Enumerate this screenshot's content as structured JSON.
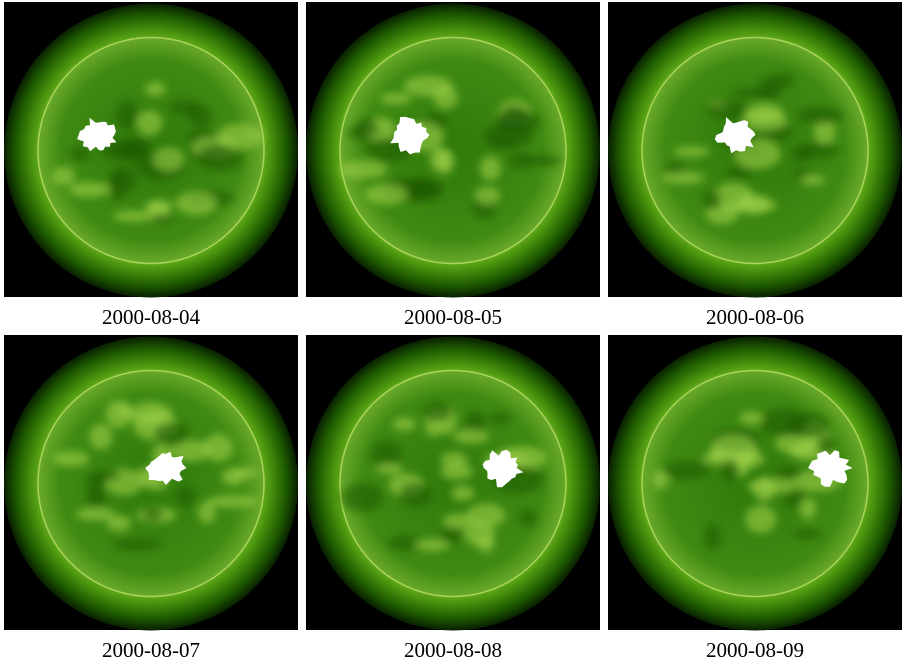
{
  "panels": [
    {
      "caption": "2000-08-04"
    },
    {
      "caption": "2000-08-05"
    },
    {
      "caption": "2000-08-06"
    },
    {
      "caption": "2000-08-07"
    },
    {
      "caption": "2000-08-08"
    },
    {
      "caption": "2000-08-09"
    }
  ]
}
